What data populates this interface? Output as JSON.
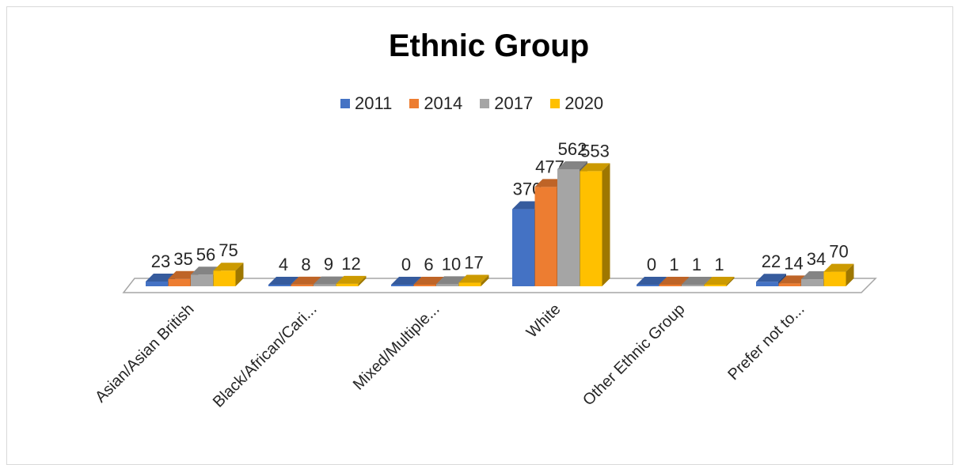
{
  "chart_data": {
    "type": "bar",
    "title": "Ethnic Group",
    "categories": [
      "Asian/Asian British",
      "Black/African/Cari...",
      "Mixed/Multiple...",
      "White",
      "Other Ethnic Group",
      "Prefer not to..."
    ],
    "series": [
      {
        "name": "2011",
        "color": "#4472C4",
        "values": [
          23,
          4,
          0,
          370,
          0,
          22
        ]
      },
      {
        "name": "2014",
        "color": "#ED7D31",
        "values": [
          35,
          8,
          6,
          477,
          1,
          14
        ]
      },
      {
        "name": "2017",
        "color": "#A5A5A5",
        "values": [
          56,
          9,
          10,
          562,
          1,
          34
        ]
      },
      {
        "name": "2020",
        "color": "#FFC000",
        "values": [
          75,
          12,
          17,
          553,
          1,
          70
        ]
      }
    ],
    "legend_position": "top",
    "grid": false,
    "style": "3d-clustered-column"
  }
}
